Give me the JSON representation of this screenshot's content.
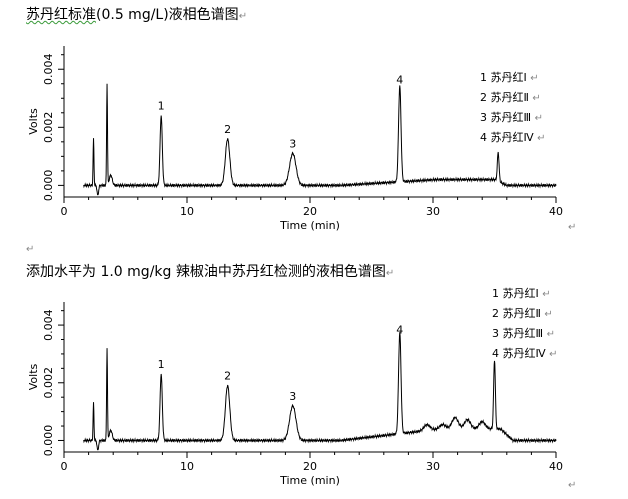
{
  "headings": {
    "top_prefix": "苏丹红标准",
    "top_suffix": "(0.5 mg/L)液相色谱图",
    "bottom": "添加水平为 1.0 mg/kg 辣椒油中苏丹红检测的液相色谱图",
    "para_mark": "↵"
  },
  "chart_data": [
    {
      "type": "line",
      "title": "苏丹红标准(0.5 mg/L)液相色谱图",
      "xlabel": "Time (min)",
      "ylabel": "Volts",
      "xlim": [
        0,
        40
      ],
      "ylim": [
        -0.0004,
        0.0048
      ],
      "x_ticks": [
        "0",
        "10",
        "20",
        "30",
        "40"
      ],
      "y_ticks": [
        "0.000",
        "0.002",
        "0.004"
      ],
      "y_tick_values": [
        0,
        0.002,
        0.004
      ],
      "legend": [
        "1 苏丹红Ⅰ",
        "2 苏丹红Ⅱ",
        "3 苏丹红Ⅲ",
        "4 苏丹红Ⅳ"
      ],
      "legend_position": "top-right",
      "peaks": [
        {
          "label": "1",
          "name": "苏丹红Ⅰ",
          "rt": 7.9,
          "height": 0.0024
        },
        {
          "label": "2",
          "name": "苏丹红Ⅱ",
          "rt": 13.3,
          "height": 0.0016
        },
        {
          "label": "3",
          "name": "苏丹红Ⅲ",
          "rt": 18.6,
          "height": 0.0011
        },
        {
          "label": "4",
          "name": "苏丹红Ⅳ",
          "rt": 27.3,
          "height": 0.0033
        }
      ],
      "system_peaks": [
        {
          "rt": 2.4,
          "height": 0.0016
        },
        {
          "rt": 3.5,
          "height": 0.0035
        }
      ],
      "baseline_hump": {
        "start": 22.5,
        "end": 35,
        "height": 0.0002
      },
      "late_peak": {
        "rt": 35.3,
        "height": 0.001
      }
    },
    {
      "type": "line",
      "title": "添加水平为 1.0 mg/kg 辣椒油中苏丹红检测的液相色谱图",
      "xlabel": "Time (min)",
      "ylabel": "Volts",
      "xlim": [
        0,
        40
      ],
      "ylim": [
        -0.0004,
        0.0048
      ],
      "x_ticks": [
        "0",
        "10",
        "20",
        "30",
        "40"
      ],
      "y_ticks": [
        "0.000",
        "0.002",
        "0.004"
      ],
      "y_tick_values": [
        0,
        0.002,
        0.004
      ],
      "legend": [
        "1 苏丹红Ⅰ",
        "2 苏丹红Ⅱ",
        "3 苏丹红Ⅲ",
        "4 苏丹红Ⅳ"
      ],
      "legend_position": "top-right",
      "peaks": [
        {
          "label": "1",
          "name": "苏丹红Ⅰ",
          "rt": 7.9,
          "height": 0.0023
        },
        {
          "label": "2",
          "name": "苏丹红Ⅱ",
          "rt": 13.3,
          "height": 0.0019
        },
        {
          "label": "3",
          "name": "苏丹红Ⅲ",
          "rt": 18.6,
          "height": 0.0012
        },
        {
          "label": "4",
          "name": "苏丹红Ⅳ",
          "rt": 27.3,
          "height": 0.0035
        }
      ],
      "system_peaks": [
        {
          "rt": 2.4,
          "height": 0.0013
        },
        {
          "rt": 3.5,
          "height": 0.0032
        }
      ],
      "baseline_hump": {
        "start": 22.5,
        "end": 35.5,
        "height": 0.0004
      },
      "late_peak": {
        "rt": 35.0,
        "height": 0.0024
      }
    }
  ]
}
